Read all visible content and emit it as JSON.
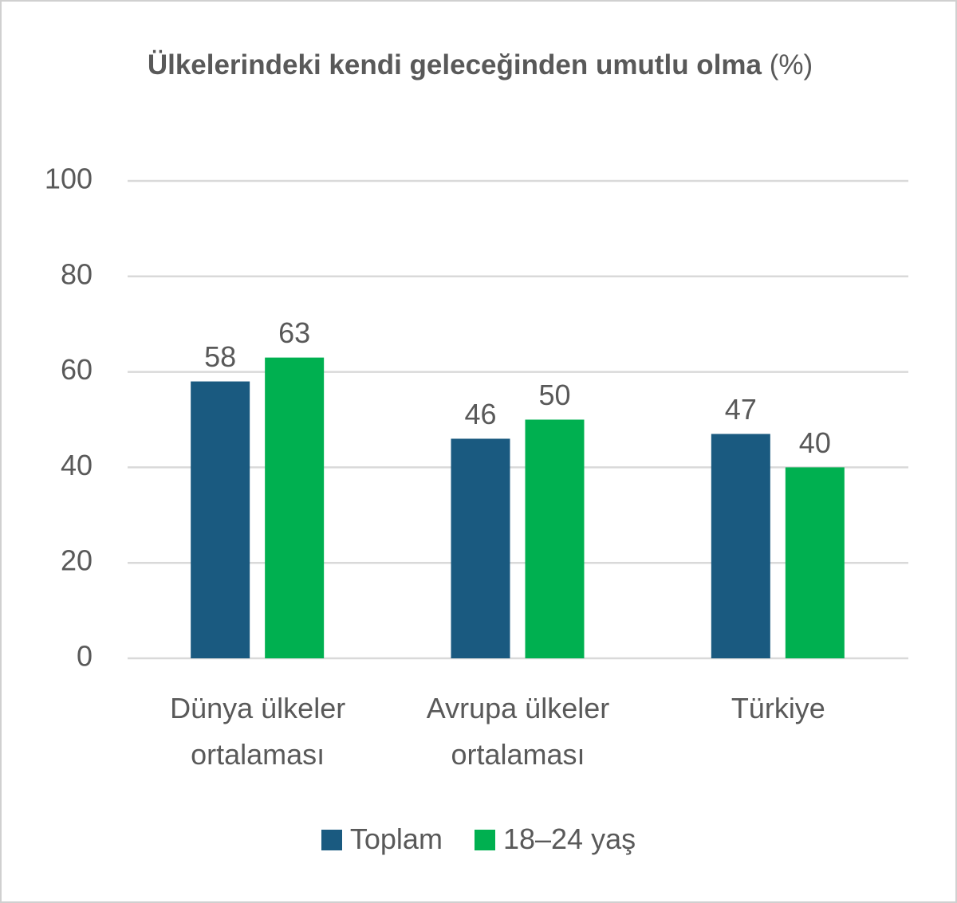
{
  "chart_data": {
    "type": "bar",
    "title": "Ülkelerindeki kendi geleceğinden umutlu olma",
    "title_unit": "(%)",
    "categories": [
      "Dünya ülkeler ortalaması",
      "Avrupa ülkeler ortalaması",
      "Türkiye"
    ],
    "series": [
      {
        "name": "Toplam",
        "color": "#1a5a80",
        "values": [
          58,
          46,
          47
        ]
      },
      {
        "name": "18–24 yaş",
        "color": "#00b050",
        "values": [
          63,
          50,
          40
        ]
      }
    ],
    "ylim": [
      0,
      100
    ],
    "yticks": [
      0,
      20,
      40,
      60,
      80,
      100
    ],
    "grid": true,
    "legend": "bottom"
  }
}
